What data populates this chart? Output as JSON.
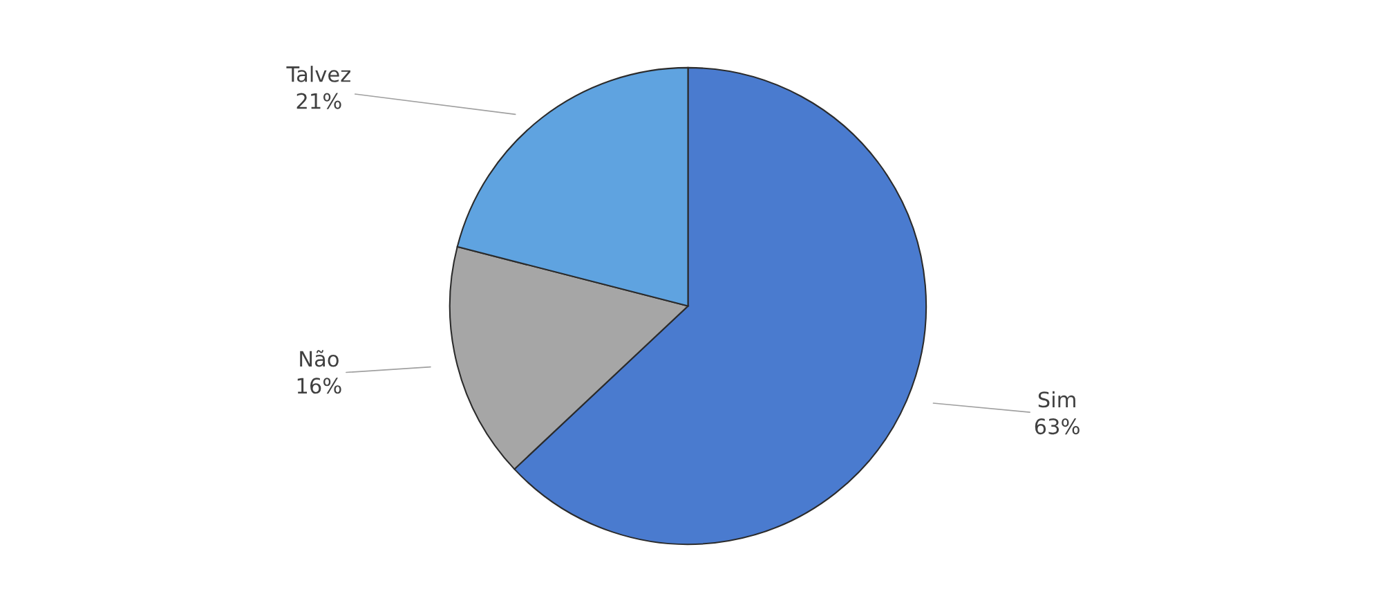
{
  "chart_data": {
    "type": "pie",
    "categories": [
      "Sim",
      "Não",
      "Talvez"
    ],
    "values": [
      63,
      16,
      21
    ],
    "colors": [
      "#4a7bcf",
      "#a6a6a6",
      "#5fa3e0"
    ],
    "value_labels": [
      "63%",
      "16%",
      "21%"
    ],
    "legend": false
  }
}
